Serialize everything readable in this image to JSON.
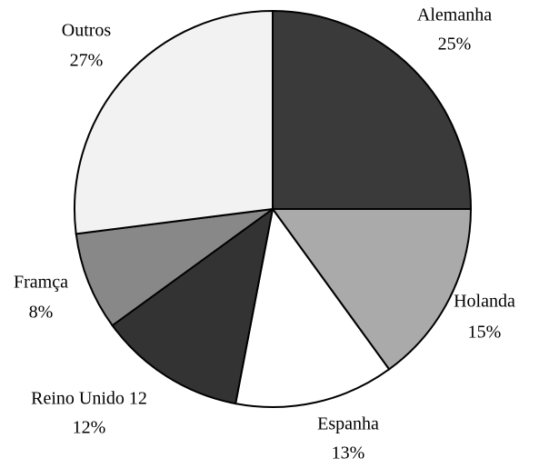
{
  "chart_data": {
    "type": "pie",
    "categories": [
      "Alemanha",
      "Holanda",
      "Espanha",
      "Reino Unido 12",
      "Framça",
      "Outros"
    ],
    "values": [
      25,
      15,
      13,
      12,
      8,
      27
    ],
    "value_labels": [
      "25%",
      "15%",
      "13%",
      "12%",
      "8%",
      "27%"
    ],
    "colors": [
      "#3a3a3a",
      "#aaaaaa",
      "#ffffff",
      "#333333",
      "#888888",
      "#f2f2f2"
    ]
  }
}
